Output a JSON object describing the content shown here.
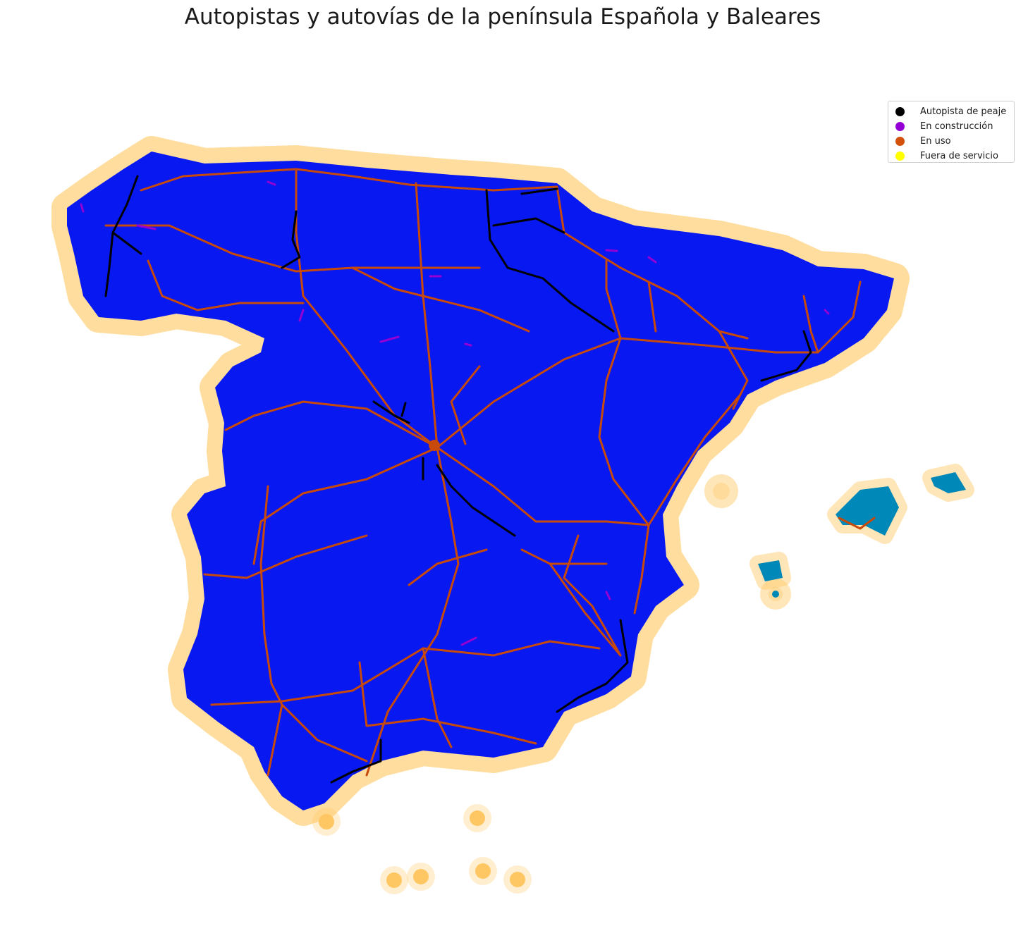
{
  "title": "Autopistas y autovías de la península Española y Baleares",
  "legend": {
    "placement": "top-right",
    "items": [
      {
        "label": "Autopista de peaje",
        "color": "#000000",
        "icon": "dot-marker"
      },
      {
        "label": "En construcción",
        "color": "#9400d3",
        "icon": "dot-marker"
      },
      {
        "label": "En uso",
        "color": "#d2500a",
        "icon": "dot-marker"
      },
      {
        "label": "Fuera de servicio",
        "color": "#ffff00",
        "icon": "dot-marker"
      }
    ]
  },
  "colors": {
    "coast_halo": "#ffc864",
    "land_north": "#00ff80",
    "land_center": "#0096a0",
    "land_south": "#0020f0",
    "road_in_use": "#c84a0a",
    "road_toll": "#000000",
    "road_construction": "#9400d3"
  }
}
